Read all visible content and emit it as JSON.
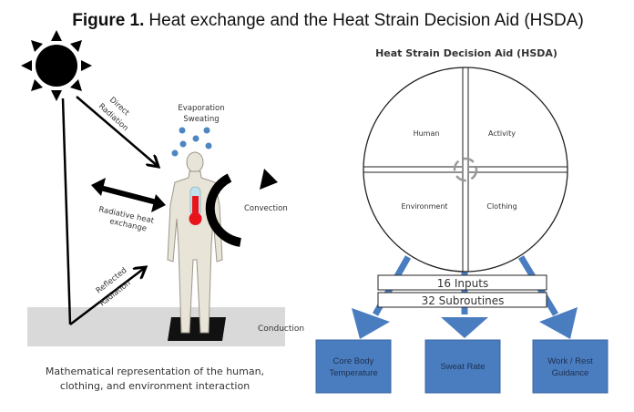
{
  "figure_title": {
    "prefix": "Figure 1.",
    "text": "Heat exchange and the Heat Strain Decision Aid (HSDA)"
  },
  "left_panel": {
    "labels": {
      "direct_radiation_1": "Direct",
      "direct_radiation_2": "Radiation",
      "evaporation": "Evaporation",
      "sweating": "Sweating",
      "radiative_1": "Radiative heat",
      "radiative_2": "exchange",
      "convection": "Convection",
      "reflected_1": "Reflected",
      "reflected_2": "Radiation",
      "conduction": "Conduction"
    },
    "caption_1": "Mathematical representation of the human,",
    "caption_2": "clothing, and environment interaction"
  },
  "right_panel": {
    "title": "Heat Strain Decision Aid (HSDA)",
    "quadrants": [
      "Human",
      "Activity",
      "Environment",
      "Clothing"
    ],
    "inputs_label": "16 Inputs",
    "subroutines_label": "32 Subroutines",
    "outputs": [
      {
        "line1": "Core Body",
        "line2": "Temperature"
      },
      {
        "line1": "Sweat Rate",
        "line2": ""
      },
      {
        "line1": "Work / Rest",
        "line2": "Guidance"
      }
    ],
    "colors": {
      "output_fill": "#4a7dbf",
      "output_text": "#1d2f4f",
      "thermometer": "#e8141c",
      "sweat": "#4d86c2"
    }
  }
}
